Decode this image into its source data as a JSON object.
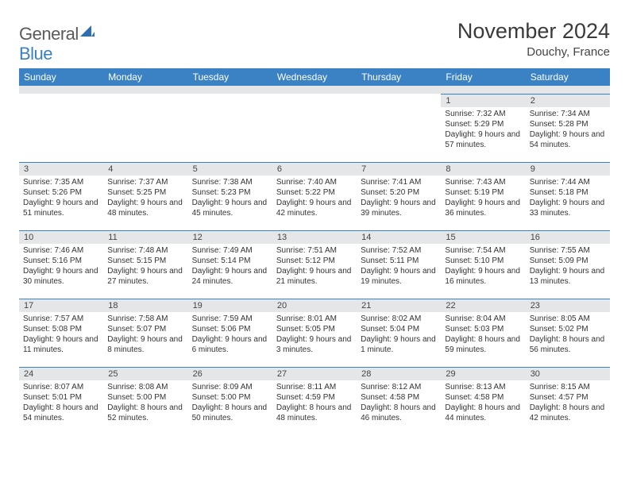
{
  "logo": {
    "text1": "General",
    "text2": "Blue",
    "shape_color": "#2f6fb0"
  },
  "header": {
    "month_title": "November 2024",
    "location": "Douchy, France"
  },
  "colors": {
    "header_bg": "#3a82c4",
    "daynum_bg": "#e4e6e8",
    "border": "#3a82c4"
  },
  "weekdays": [
    "Sunday",
    "Monday",
    "Tuesday",
    "Wednesday",
    "Thursday",
    "Friday",
    "Saturday"
  ],
  "weeks": [
    [
      {
        "n": "",
        "sr": "",
        "ss": "",
        "dl": ""
      },
      {
        "n": "",
        "sr": "",
        "ss": "",
        "dl": ""
      },
      {
        "n": "",
        "sr": "",
        "ss": "",
        "dl": ""
      },
      {
        "n": "",
        "sr": "",
        "ss": "",
        "dl": ""
      },
      {
        "n": "",
        "sr": "",
        "ss": "",
        "dl": ""
      },
      {
        "n": "1",
        "sr": "Sunrise: 7:32 AM",
        "ss": "Sunset: 5:29 PM",
        "dl": "Daylight: 9 hours and 57 minutes."
      },
      {
        "n": "2",
        "sr": "Sunrise: 7:34 AM",
        "ss": "Sunset: 5:28 PM",
        "dl": "Daylight: 9 hours and 54 minutes."
      }
    ],
    [
      {
        "n": "3",
        "sr": "Sunrise: 7:35 AM",
        "ss": "Sunset: 5:26 PM",
        "dl": "Daylight: 9 hours and 51 minutes."
      },
      {
        "n": "4",
        "sr": "Sunrise: 7:37 AM",
        "ss": "Sunset: 5:25 PM",
        "dl": "Daylight: 9 hours and 48 minutes."
      },
      {
        "n": "5",
        "sr": "Sunrise: 7:38 AM",
        "ss": "Sunset: 5:23 PM",
        "dl": "Daylight: 9 hours and 45 minutes."
      },
      {
        "n": "6",
        "sr": "Sunrise: 7:40 AM",
        "ss": "Sunset: 5:22 PM",
        "dl": "Daylight: 9 hours and 42 minutes."
      },
      {
        "n": "7",
        "sr": "Sunrise: 7:41 AM",
        "ss": "Sunset: 5:20 PM",
        "dl": "Daylight: 9 hours and 39 minutes."
      },
      {
        "n": "8",
        "sr": "Sunrise: 7:43 AM",
        "ss": "Sunset: 5:19 PM",
        "dl": "Daylight: 9 hours and 36 minutes."
      },
      {
        "n": "9",
        "sr": "Sunrise: 7:44 AM",
        "ss": "Sunset: 5:18 PM",
        "dl": "Daylight: 9 hours and 33 minutes."
      }
    ],
    [
      {
        "n": "10",
        "sr": "Sunrise: 7:46 AM",
        "ss": "Sunset: 5:16 PM",
        "dl": "Daylight: 9 hours and 30 minutes."
      },
      {
        "n": "11",
        "sr": "Sunrise: 7:48 AM",
        "ss": "Sunset: 5:15 PM",
        "dl": "Daylight: 9 hours and 27 minutes."
      },
      {
        "n": "12",
        "sr": "Sunrise: 7:49 AM",
        "ss": "Sunset: 5:14 PM",
        "dl": "Daylight: 9 hours and 24 minutes."
      },
      {
        "n": "13",
        "sr": "Sunrise: 7:51 AM",
        "ss": "Sunset: 5:12 PM",
        "dl": "Daylight: 9 hours and 21 minutes."
      },
      {
        "n": "14",
        "sr": "Sunrise: 7:52 AM",
        "ss": "Sunset: 5:11 PM",
        "dl": "Daylight: 9 hours and 19 minutes."
      },
      {
        "n": "15",
        "sr": "Sunrise: 7:54 AM",
        "ss": "Sunset: 5:10 PM",
        "dl": "Daylight: 9 hours and 16 minutes."
      },
      {
        "n": "16",
        "sr": "Sunrise: 7:55 AM",
        "ss": "Sunset: 5:09 PM",
        "dl": "Daylight: 9 hours and 13 minutes."
      }
    ],
    [
      {
        "n": "17",
        "sr": "Sunrise: 7:57 AM",
        "ss": "Sunset: 5:08 PM",
        "dl": "Daylight: 9 hours and 11 minutes."
      },
      {
        "n": "18",
        "sr": "Sunrise: 7:58 AM",
        "ss": "Sunset: 5:07 PM",
        "dl": "Daylight: 9 hours and 8 minutes."
      },
      {
        "n": "19",
        "sr": "Sunrise: 7:59 AM",
        "ss": "Sunset: 5:06 PM",
        "dl": "Daylight: 9 hours and 6 minutes."
      },
      {
        "n": "20",
        "sr": "Sunrise: 8:01 AM",
        "ss": "Sunset: 5:05 PM",
        "dl": "Daylight: 9 hours and 3 minutes."
      },
      {
        "n": "21",
        "sr": "Sunrise: 8:02 AM",
        "ss": "Sunset: 5:04 PM",
        "dl": "Daylight: 9 hours and 1 minute."
      },
      {
        "n": "22",
        "sr": "Sunrise: 8:04 AM",
        "ss": "Sunset: 5:03 PM",
        "dl": "Daylight: 8 hours and 59 minutes."
      },
      {
        "n": "23",
        "sr": "Sunrise: 8:05 AM",
        "ss": "Sunset: 5:02 PM",
        "dl": "Daylight: 8 hours and 56 minutes."
      }
    ],
    [
      {
        "n": "24",
        "sr": "Sunrise: 8:07 AM",
        "ss": "Sunset: 5:01 PM",
        "dl": "Daylight: 8 hours and 54 minutes."
      },
      {
        "n": "25",
        "sr": "Sunrise: 8:08 AM",
        "ss": "Sunset: 5:00 PM",
        "dl": "Daylight: 8 hours and 52 minutes."
      },
      {
        "n": "26",
        "sr": "Sunrise: 8:09 AM",
        "ss": "Sunset: 5:00 PM",
        "dl": "Daylight: 8 hours and 50 minutes."
      },
      {
        "n": "27",
        "sr": "Sunrise: 8:11 AM",
        "ss": "Sunset: 4:59 PM",
        "dl": "Daylight: 8 hours and 48 minutes."
      },
      {
        "n": "28",
        "sr": "Sunrise: 8:12 AM",
        "ss": "Sunset: 4:58 PM",
        "dl": "Daylight: 8 hours and 46 minutes."
      },
      {
        "n": "29",
        "sr": "Sunrise: 8:13 AM",
        "ss": "Sunset: 4:58 PM",
        "dl": "Daylight: 8 hours and 44 minutes."
      },
      {
        "n": "30",
        "sr": "Sunrise: 8:15 AM",
        "ss": "Sunset: 4:57 PM",
        "dl": "Daylight: 8 hours and 42 minutes."
      }
    ]
  ]
}
